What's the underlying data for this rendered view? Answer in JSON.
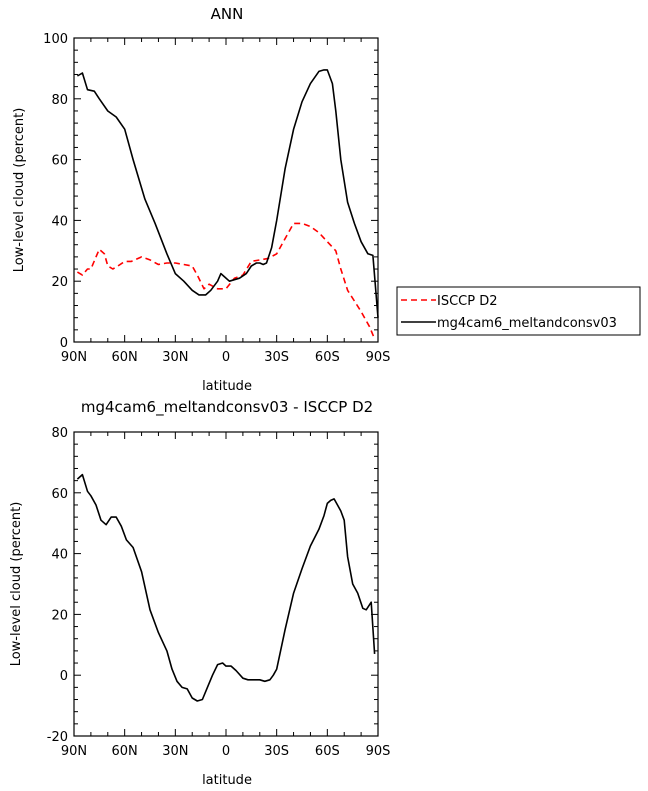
{
  "chart_data": [
    {
      "type": "line",
      "title": "ANN",
      "xlabel": "latitude",
      "ylabel": "Low-level cloud (percent)",
      "xlim": [
        -90,
        90
      ],
      "ylim": [
        0,
        100
      ],
      "xticks": [
        "90N",
        "60N",
        "30N",
        "0",
        "30S",
        "60S",
        "90S"
      ],
      "yticks": [
        "0",
        "20",
        "40",
        "60",
        "80",
        "100"
      ],
      "legend": {
        "position": "right"
      },
      "series": [
        {
          "name": "ISCCP D2",
          "color": "#ff0000",
          "dash": "dashed",
          "x": [
            -88,
            -85,
            -82,
            -80,
            -77,
            -75,
            -72,
            -70,
            -67,
            -64,
            -60,
            -56,
            -50,
            -45,
            -40,
            -35,
            -30,
            -25,
            -20,
            -17,
            -13,
            -10,
            -5,
            0,
            5,
            10,
            15,
            20,
            25,
            30,
            35,
            40,
            45,
            50,
            55,
            60,
            65,
            68,
            72,
            76,
            80,
            85,
            88
          ],
          "y": [
            23,
            22,
            24,
            24,
            28,
            30.5,
            29,
            25,
            24,
            25,
            26.5,
            26.5,
            28,
            27,
            25.5,
            26,
            26,
            25.5,
            25,
            22,
            17.5,
            19,
            17.5,
            17.5,
            21,
            22,
            26.5,
            27,
            27.5,
            29,
            34,
            39,
            39,
            38,
            36,
            33,
            30,
            24,
            17,
            13.5,
            10,
            5,
            1
          ]
        },
        {
          "name": "mg4cam6_meltandconsv03",
          "color": "#000000",
          "dash": "solid",
          "x": [
            -88,
            -85,
            -82,
            -78,
            -75,
            -70,
            -65,
            -60,
            -55,
            -48,
            -42,
            -35,
            -30,
            -25,
            -20,
            -16,
            -12,
            -9,
            -5,
            -3,
            -1,
            2,
            5,
            8,
            12,
            15,
            18,
            20,
            22,
            24,
            27,
            30,
            35,
            40,
            45,
            50,
            55,
            58,
            60,
            63,
            65,
            68,
            72,
            76,
            80,
            84,
            87,
            90
          ],
          "y": [
            87.5,
            88.5,
            83,
            82.5,
            80,
            76,
            74,
            70,
            60,
            47,
            39,
            29,
            22.5,
            20,
            17,
            15.5,
            15.5,
            17,
            20,
            22.5,
            21.5,
            20,
            20.5,
            21,
            22.5,
            25,
            26,
            26,
            25.5,
            26,
            31,
            40,
            57,
            70,
            79,
            85,
            89,
            89.5,
            89.5,
            85,
            76,
            60,
            46,
            39,
            33,
            29,
            28.5,
            8
          ]
        }
      ]
    },
    {
      "type": "line",
      "title": "mg4cam6_meltandconsv03 - ISCCP D2",
      "xlabel": "latitude",
      "ylabel": "Low-level cloud (percent)",
      "xlim": [
        -90,
        90
      ],
      "ylim": [
        -20,
        80
      ],
      "xticks": [
        "90N",
        "60N",
        "30N",
        "0",
        "30S",
        "60S",
        "90S"
      ],
      "yticks": [
        "-20",
        "0",
        "20",
        "40",
        "60",
        "80"
      ],
      "series": [
        {
          "color": "#000000",
          "dash": "solid",
          "x": [
            -88,
            -85,
            -82,
            -80,
            -77,
            -74,
            -71,
            -68,
            -65,
            -62,
            -59,
            -55,
            -50,
            -45,
            -40,
            -35,
            -32,
            -29,
            -26,
            -23,
            -20,
            -17,
            -14,
            -11,
            -8,
            -5,
            -2,
            0,
            3,
            6,
            10,
            13,
            16,
            20,
            23,
            26,
            28,
            30,
            35,
            40,
            45,
            50,
            55,
            58,
            60,
            62,
            64,
            66,
            68,
            70,
            72,
            75,
            78,
            81,
            83,
            86,
            88
          ],
          "y": [
            64.5,
            66,
            60.5,
            59,
            56,
            51,
            49.5,
            52,
            52,
            49,
            44.5,
            42,
            34,
            21.5,
            14,
            8,
            2,
            -2,
            -4,
            -4.5,
            -7.5,
            -8.5,
            -8,
            -4,
            0,
            3.5,
            4,
            3,
            3,
            1.5,
            -1,
            -1.5,
            -1.5,
            -1.5,
            -2,
            -1.5,
            0,
            2,
            15,
            27,
            35,
            42.5,
            48,
            52.5,
            56.5,
            57.5,
            58,
            56,
            54,
            51,
            39,
            30,
            27,
            22,
            21.5,
            24,
            7
          ]
        }
      ]
    }
  ]
}
